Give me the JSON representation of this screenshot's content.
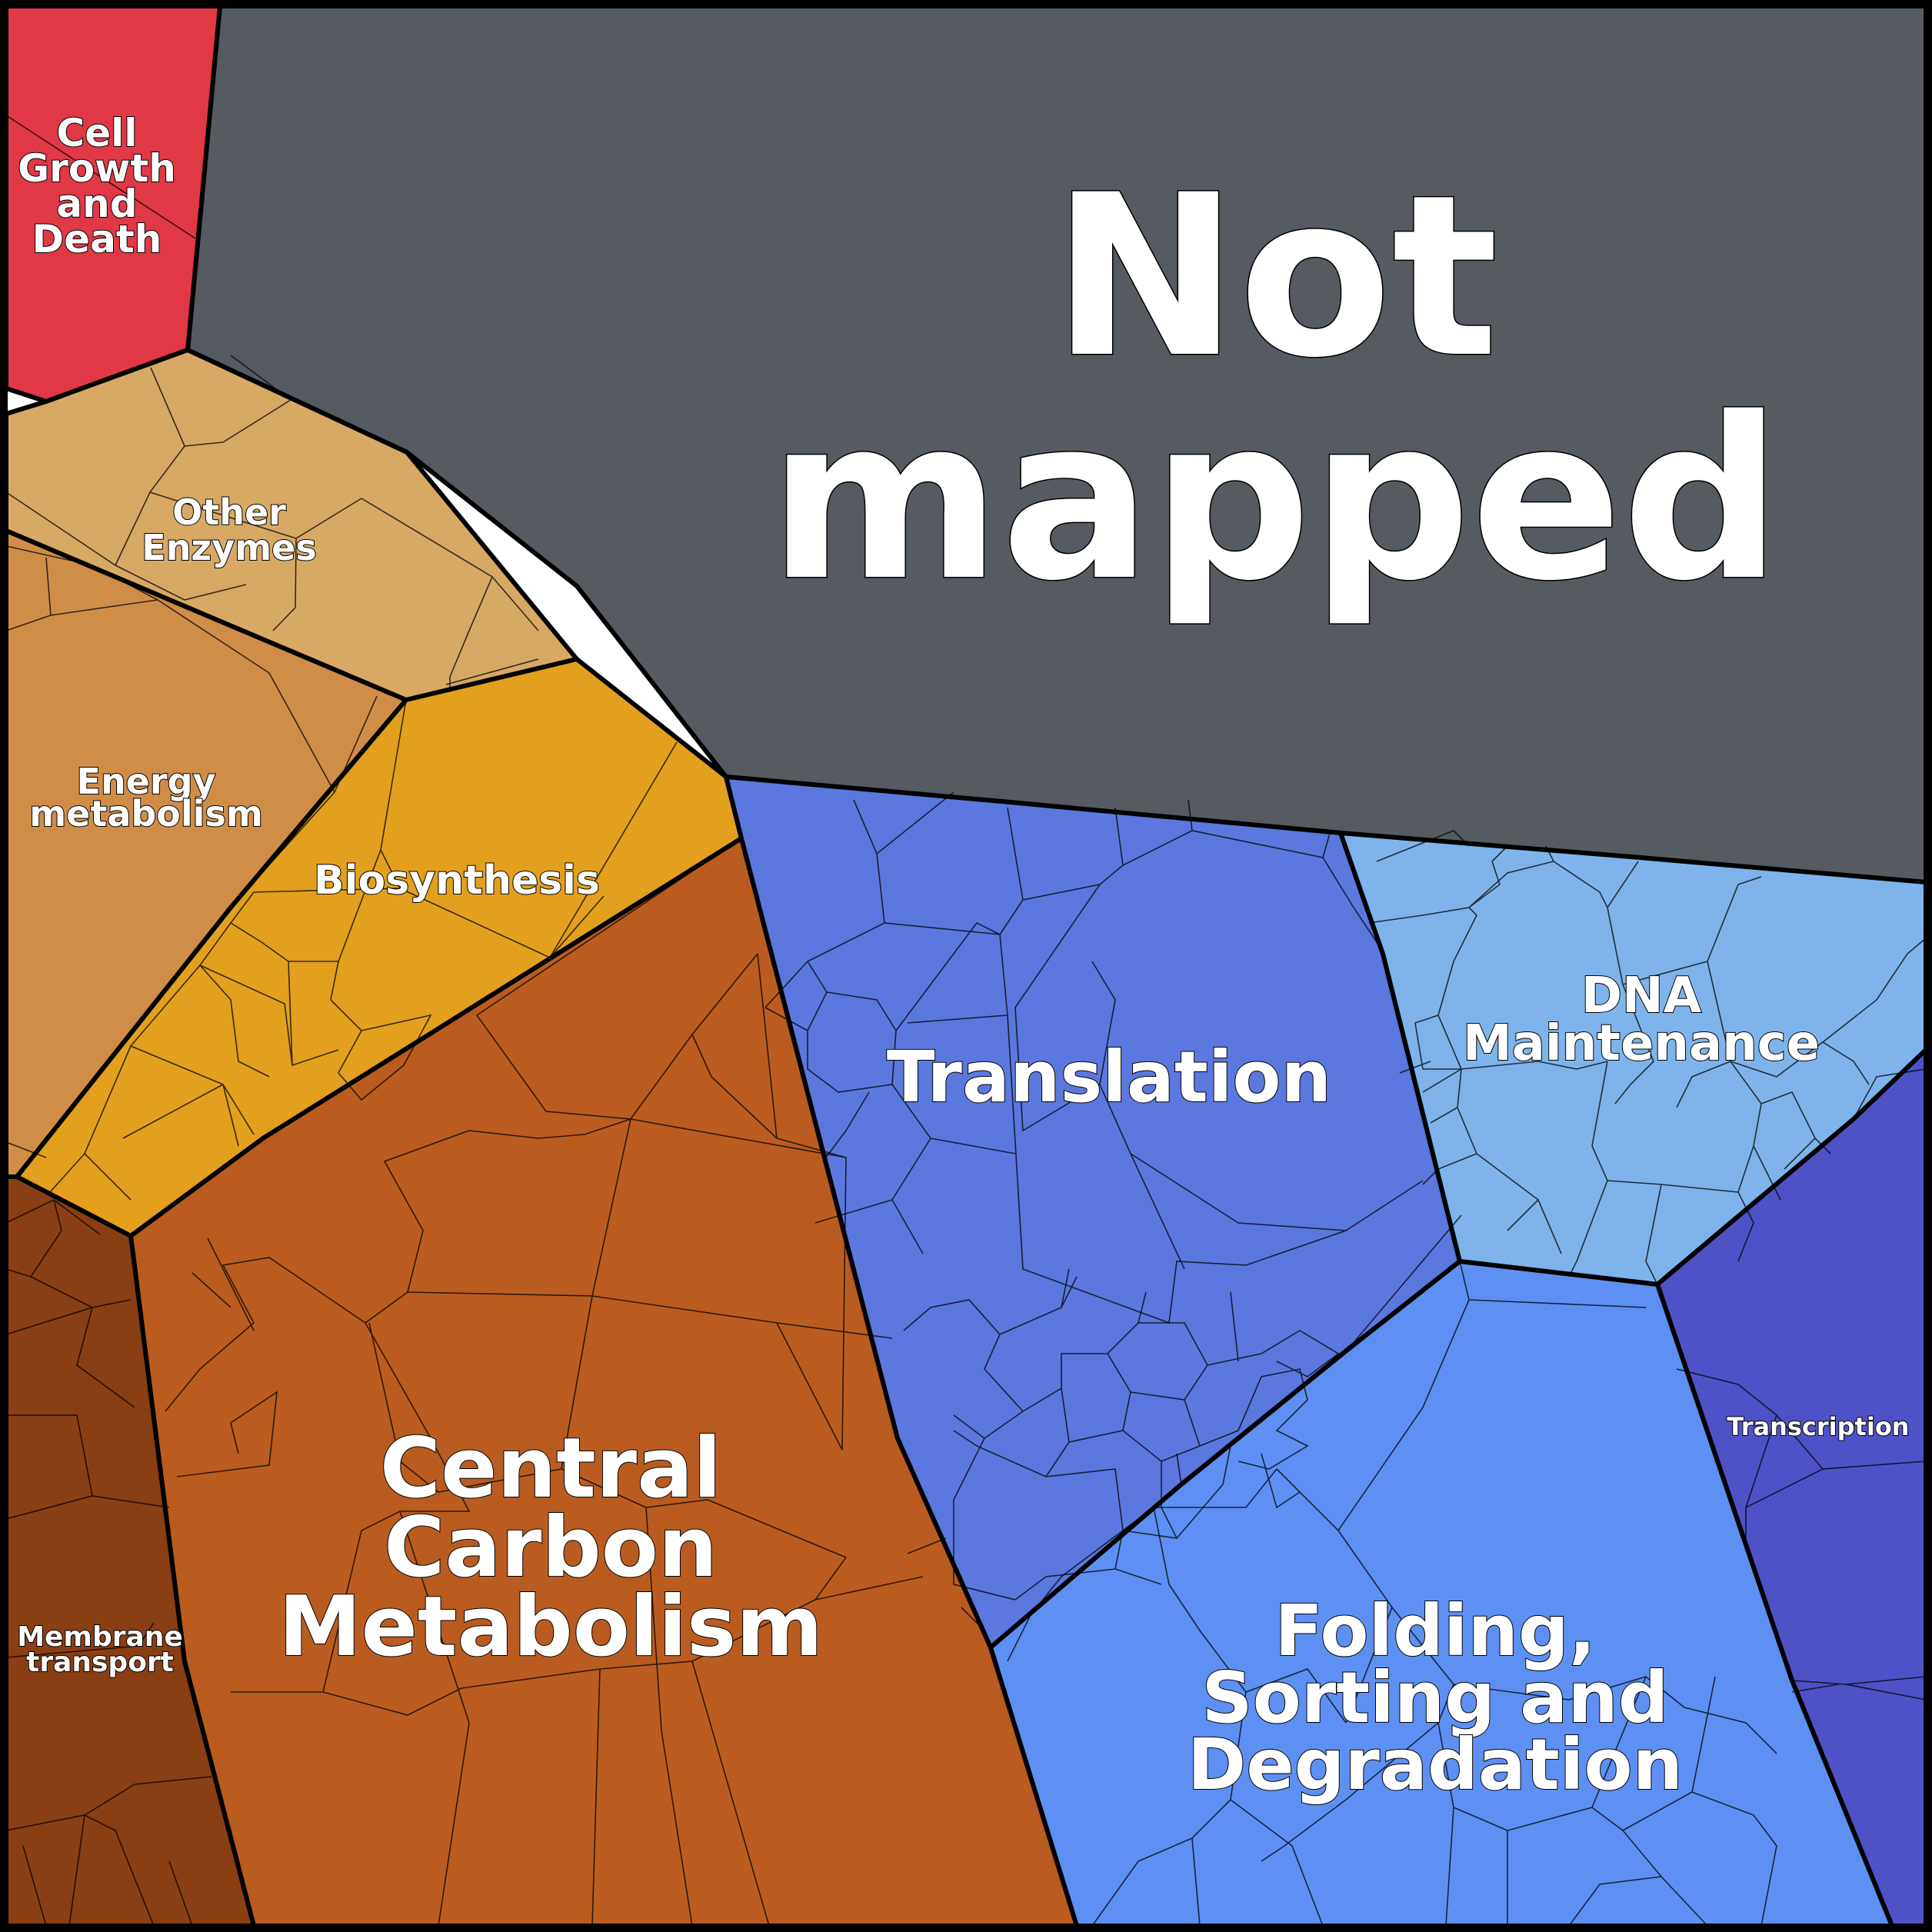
{
  "title": "",
  "categories": [
    {
      "id": "not-mapped",
      "lines": [
        "Not",
        "mapped"
      ],
      "color": "#565b61"
    },
    {
      "id": "cell-growth",
      "lines": [
        "Cell",
        "Growth",
        "and",
        "Death"
      ],
      "color": "#e03845"
    },
    {
      "id": "other-enzymes",
      "lines": [
        "Other",
        "Enzymes"
      ],
      "color": "#d8a865"
    },
    {
      "id": "energy-metabolism",
      "lines": [
        "Energy",
        "metabolism"
      ],
      "color": "#d08d48"
    },
    {
      "id": "biosynthesis",
      "lines": [
        "Biosynthesis"
      ],
      "color": "#e3a01e"
    },
    {
      "id": "central-carbon",
      "lines": [
        "Central",
        "Carbon",
        "Metabolism"
      ],
      "color": "#ba5c20"
    },
    {
      "id": "membrane-transport",
      "lines": [
        "Membrane",
        "transport"
      ],
      "color": "#8a3e14"
    },
    {
      "id": "translation",
      "lines": [
        "Translation"
      ],
      "color": "#5a78de"
    },
    {
      "id": "dna-maintenance",
      "lines": [
        "DNA",
        "Maintenance"
      ],
      "color": "#7eb4eb"
    },
    {
      "id": "transcription",
      "lines": [
        "Transcription"
      ],
      "color": "#4f52c6"
    },
    {
      "id": "folding",
      "lines": [
        "Folding,",
        "Sorting and",
        "Degradation"
      ],
      "color": "#5d90f2"
    }
  ]
}
